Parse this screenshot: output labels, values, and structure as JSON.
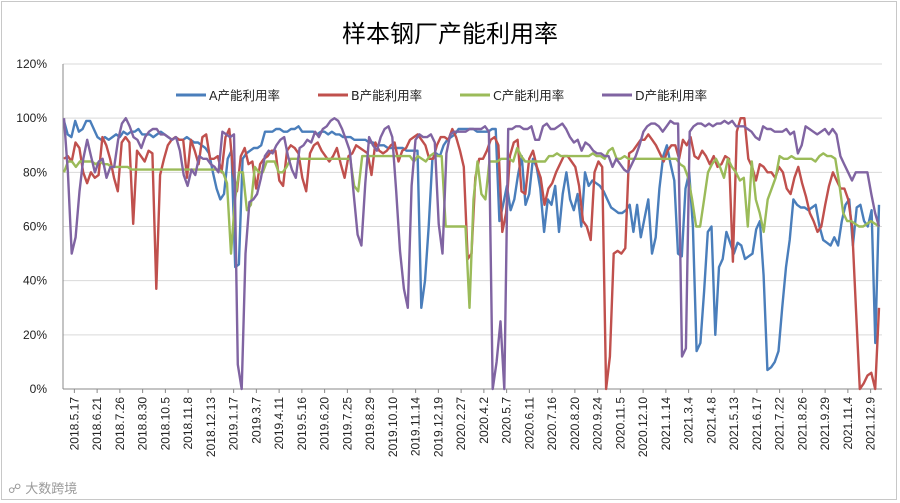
{
  "chart_data": {
    "type": "line",
    "title": "样本钢厂产能利用率",
    "ylim": [
      0,
      1.2
    ],
    "y_ticks": [
      "0%",
      "20%",
      "40%",
      "60%",
      "80%",
      "100%",
      "120%"
    ],
    "x_tick_labels": [
      "2018.5.17",
      "2018.6.21",
      "2018.7.26",
      "2018.8.30",
      "2018.10.5",
      "2018.11.8",
      "2018.12.13",
      "2019.1.17",
      "2019.3.7",
      "2019.4.11",
      "2019.5.16",
      "2019.6.20",
      "2019.7.25",
      "2019.8.29",
      "2019.10.10",
      "2019.11.14",
      "2019.12.19",
      "2020.2.27",
      "2020.4.2",
      "2020.5.7",
      "2020.6.11",
      "2020.7.16",
      "2020.8.20",
      "2020.9.24",
      "2020.11.5",
      "2020.12.10",
      "2021.1.14",
      "2021.3.4",
      "2021.4.8",
      "2021.5.13",
      "2021.6.17",
      "2021.7.22",
      "2021.8.26",
      "2021.9.29",
      "2021.11.4",
      "2021.12.9"
    ],
    "grid": "horizontal",
    "legend_position": "top",
    "series": [
      {
        "name": "A产能利用率",
        "color": "#4a7ebb",
        "values": [
          0.99,
          0.94,
          0.93,
          0.99,
          0.95,
          0.96,
          0.99,
          0.99,
          0.96,
          0.93,
          0.92,
          0.93,
          0.92,
          0.93,
          0.94,
          0.93,
          0.95,
          0.94,
          0.95,
          0.95,
          0.96,
          0.94,
          0.94,
          0.94,
          0.93,
          0.94,
          0.95,
          0.94,
          0.93,
          0.92,
          0.93,
          0.92,
          0.92,
          0.93,
          0.92,
          0.91,
          0.91,
          0.9,
          0.89,
          0.87,
          0.8,
          0.74,
          0.7,
          0.72,
          0.85,
          0.88,
          0.45,
          0.46,
          0.85,
          0.87,
          0.88,
          0.89,
          0.89,
          0.9,
          0.95,
          0.95,
          0.95,
          0.96,
          0.96,
          0.95,
          0.95,
          0.96,
          0.96,
          0.97,
          0.95,
          0.95,
          0.95,
          0.95,
          0.94,
          0.95,
          0.95,
          0.94,
          0.95,
          0.94,
          0.94,
          0.93,
          0.93,
          0.93,
          0.92,
          0.92,
          0.92,
          0.92,
          0.91,
          0.91,
          0.9,
          0.9,
          0.9,
          0.89,
          0.89,
          0.89,
          0.89,
          0.89,
          0.88,
          0.88,
          0.88,
          0.88,
          0.3,
          0.4,
          0.6,
          0.85,
          0.87,
          0.86,
          0.9,
          0.92,
          0.93,
          0.94,
          0.96,
          0.96,
          0.96,
          0.96,
          0.96,
          0.95,
          0.95,
          0.95,
          0.95,
          0.96,
          0.96,
          0.62,
          0.68,
          0.75,
          0.66,
          0.7,
          0.79,
          0.86,
          0.68,
          0.72,
          0.85,
          0.82,
          0.74,
          0.58,
          0.7,
          0.68,
          0.75,
          0.58,
          0.72,
          0.8,
          0.7,
          0.66,
          0.72,
          0.6,
          0.8,
          0.75,
          0.77,
          0.76,
          0.75,
          0.73,
          0.7,
          0.67,
          0.66,
          0.65,
          0.65,
          0.66,
          0.68,
          0.58,
          0.68,
          0.56,
          0.63,
          0.7,
          0.5,
          0.56,
          0.74,
          0.86,
          0.9,
          0.83,
          0.77,
          0.5,
          0.49,
          0.74,
          0.8,
          0.6,
          0.14,
          0.17,
          0.36,
          0.58,
          0.6,
          0.2,
          0.45,
          0.48,
          0.58,
          0.54,
          0.5,
          0.54,
          0.53,
          0.48,
          0.49,
          0.5,
          0.59,
          0.62,
          0.42,
          0.07,
          0.08,
          0.1,
          0.14,
          0.3,
          0.45,
          0.55,
          0.7,
          0.68,
          0.67,
          0.67,
          0.66,
          0.67,
          0.68,
          0.6,
          0.55,
          0.54,
          0.53,
          0.56,
          0.53,
          0.62,
          0.68,
          0.7,
          0.53,
          0.67,
          0.68,
          0.62,
          0.6,
          0.66,
          0.17,
          0.68
        ]
      },
      {
        "name": "B产能利用率",
        "color": "#c0504d",
        "values": [
          0.85,
          0.86,
          0.84,
          0.91,
          0.89,
          0.8,
          0.76,
          0.8,
          0.78,
          0.79,
          0.93,
          0.9,
          0.85,
          0.78,
          0.73,
          0.91,
          0.93,
          0.91,
          0.61,
          0.88,
          0.86,
          0.84,
          0.88,
          0.87,
          0.37,
          0.79,
          0.85,
          0.9,
          0.92,
          0.93,
          0.92,
          0.92,
          0.78,
          0.92,
          0.88,
          0.83,
          0.93,
          0.94,
          0.85,
          0.85,
          0.86,
          0.8,
          0.93,
          0.96,
          0.8,
          0.73,
          0.86,
          0.89,
          0.83,
          0.84,
          0.74,
          0.83,
          0.85,
          0.86,
          0.88,
          0.88,
          0.77,
          0.75,
          0.88,
          0.9,
          0.89,
          0.87,
          0.78,
          0.73,
          0.87,
          0.9,
          0.91,
          0.88,
          0.86,
          0.84,
          0.86,
          0.89,
          0.83,
          0.78,
          0.86,
          0.87,
          0.9,
          0.89,
          0.88,
          0.87,
          0.79,
          0.91,
          0.88,
          0.87,
          0.88,
          0.9,
          0.91,
          0.84,
          0.88,
          0.89,
          0.92,
          0.93,
          0.94,
          0.92,
          0.9,
          0.85,
          0.85,
          0.9,
          0.93,
          0.93,
          0.92,
          0.96,
          0.93,
          0.88,
          0.82,
          0.48,
          0.5,
          0.78,
          0.85,
          0.85,
          0.88,
          0.92,
          0.93,
          0.9,
          0.58,
          0.65,
          0.86,
          0.91,
          0.92,
          0.73,
          0.72,
          0.85,
          0.88,
          0.82,
          0.78,
          0.68,
          0.74,
          0.76,
          0.8,
          0.83,
          0.86,
          0.86,
          0.84,
          0.82,
          0.75,
          0.62,
          0.6,
          0.55,
          0.8,
          0.84,
          0.82,
          0.0,
          0.12,
          0.5,
          0.51,
          0.5,
          0.52,
          0.87,
          0.88,
          0.9,
          0.92,
          0.92,
          0.94,
          0.92,
          0.9,
          0.87,
          0.84,
          0.88,
          0.9,
          0.9,
          0.85,
          0.92,
          0.9,
          0.93,
          0.86,
          0.85,
          0.88,
          0.86,
          0.83,
          0.86,
          0.82,
          0.83,
          0.86,
          0.85,
          0.47,
          0.95,
          1.0,
          1.0,
          0.85,
          0.82,
          0.77,
          0.83,
          0.82,
          0.8,
          0.8,
          0.78,
          0.82,
          0.8,
          0.74,
          0.72,
          0.78,
          0.82,
          0.76,
          0.71,
          0.65,
          0.62,
          0.58,
          0.6,
          0.68,
          0.75,
          0.8,
          0.77,
          0.74,
          0.74,
          0.7,
          0.6,
          0.3,
          0.0,
          0.02,
          0.05,
          0.06,
          0.0,
          0.3
        ]
      },
      {
        "name": "C产能利用率",
        "color": "#9bbb59",
        "values": [
          0.8,
          0.84,
          0.84,
          0.82,
          0.84,
          0.84,
          0.84,
          0.84,
          0.83,
          0.84,
          0.83,
          0.83,
          0.82,
          0.82,
          0.82,
          0.82,
          0.82,
          0.81,
          0.81,
          0.81,
          0.81,
          0.81,
          0.81,
          0.81,
          0.81,
          0.81,
          0.81,
          0.81,
          0.81,
          0.81,
          0.81,
          0.81,
          0.81,
          0.81,
          0.81,
          0.81,
          0.81,
          0.81,
          0.81,
          0.81,
          0.8,
          0.76,
          0.5,
          0.7,
          0.8,
          0.8,
          0.66,
          0.68,
          0.82,
          0.8,
          0.8,
          0.84,
          0.84,
          0.84,
          0.8,
          0.8,
          0.82,
          0.85,
          0.85,
          0.85,
          0.85,
          0.85,
          0.85,
          0.85,
          0.85,
          0.85,
          0.85,
          0.85,
          0.85,
          0.85,
          0.85,
          0.85,
          0.85,
          0.75,
          0.73,
          0.86,
          0.86,
          0.86,
          0.86,
          0.86,
          0.86,
          0.86,
          0.86,
          0.86,
          0.86,
          0.86,
          0.86,
          0.86,
          0.84,
          0.86,
          0.85,
          0.84,
          0.86,
          0.87,
          0.86,
          0.86,
          0.6,
          0.6,
          0.6,
          0.6,
          0.6,
          0.6,
          0.3,
          0.7,
          0.84,
          0.72,
          0.7,
          0.84,
          0.84,
          0.84,
          0.85,
          0.85,
          0.85,
          0.84,
          0.89,
          0.86,
          0.84,
          0.84,
          0.84,
          0.84,
          0.84,
          0.84,
          0.86,
          0.86,
          0.87,
          0.86,
          0.86,
          0.86,
          0.86,
          0.86,
          0.86,
          0.86,
          0.86,
          0.87,
          0.86,
          0.86,
          0.85,
          0.88,
          0.89,
          0.85,
          0.85,
          0.86,
          0.85,
          0.85,
          0.85,
          0.85,
          0.85,
          0.85,
          0.85,
          0.85,
          0.85,
          0.85,
          0.85,
          0.85,
          0.85,
          0.83,
          0.82,
          0.78,
          0.7,
          0.6,
          0.6,
          0.7,
          0.8,
          0.83,
          0.85,
          0.82,
          0.78,
          0.85,
          0.82,
          0.8,
          0.77,
          0.78,
          0.6,
          0.84,
          0.7,
          0.65,
          0.58,
          0.7,
          0.74,
          0.78,
          0.86,
          0.85,
          0.85,
          0.86,
          0.85,
          0.85,
          0.85,
          0.85,
          0.85,
          0.84,
          0.86,
          0.87,
          0.86,
          0.86,
          0.85,
          0.76,
          0.65,
          0.62,
          0.62,
          0.61,
          0.6,
          0.6,
          0.61,
          0.62,
          0.61,
          0.6
        ]
      },
      {
        "name": "D产能利用率",
        "color": "#8064a2",
        "values": [
          1.0,
          0.8,
          0.5,
          0.56,
          0.73,
          0.85,
          0.92,
          0.86,
          0.8,
          0.84,
          0.85,
          0.78,
          0.82,
          0.82,
          0.92,
          0.98,
          1.0,
          0.97,
          0.93,
          0.92,
          0.89,
          0.93,
          0.95,
          0.96,
          0.96,
          0.94,
          0.94,
          0.93,
          0.92,
          0.93,
          0.88,
          0.79,
          0.75,
          0.81,
          0.79,
          0.86,
          0.85,
          0.85,
          0.83,
          0.82,
          0.8,
          0.95,
          0.94,
          0.93,
          0.94,
          0.09,
          0.0,
          0.5,
          0.69,
          0.7,
          0.72,
          0.78,
          0.86,
          0.88,
          0.87,
          0.9,
          0.92,
          0.93,
          0.86,
          0.81,
          0.78,
          0.89,
          0.9,
          0.92,
          0.91,
          0.95,
          0.93,
          0.96,
          0.97,
          0.99,
          1.0,
          0.99,
          0.96,
          0.92,
          0.88,
          0.72,
          0.57,
          0.53,
          0.76,
          0.93,
          0.9,
          0.88,
          0.93,
          0.96,
          0.97,
          0.93,
          0.73,
          0.51,
          0.37,
          0.3,
          0.75,
          0.92,
          0.94,
          0.93,
          0.93,
          0.94,
          0.91,
          0.61,
          0.5,
          0.87,
          0.94,
          0.95,
          0.95,
          0.95,
          0.95,
          0.96,
          0.96,
          0.96,
          0.96,
          0.97,
          0.95,
          0.0,
          0.1,
          0.25,
          0.0,
          0.96,
          0.96,
          0.97,
          0.97,
          0.96,
          0.96,
          0.97,
          0.92,
          0.92,
          0.97,
          0.98,
          0.96,
          0.96,
          0.97,
          0.98,
          0.96,
          0.93,
          0.91,
          0.92,
          0.88,
          0.91,
          0.9,
          0.88,
          0.87,
          0.87,
          0.86,
          0.86,
          0.82,
          0.85,
          0.83,
          0.81,
          0.8,
          0.83,
          0.86,
          0.9,
          0.95,
          0.97,
          0.98,
          0.98,
          0.97,
          0.95,
          0.97,
          0.99,
          0.98,
          0.98,
          0.12,
          0.15,
          0.95,
          0.97,
          0.98,
          0.98,
          0.97,
          0.98,
          0.97,
          0.98,
          0.98,
          0.99,
          0.98,
          0.99,
          0.97,
          0.97,
          0.97,
          0.96,
          0.95,
          0.93,
          0.92,
          0.97,
          0.96,
          0.96,
          0.95,
          0.95,
          0.95,
          0.96,
          0.94,
          0.95,
          0.87,
          0.9,
          0.97,
          0.96,
          0.95,
          0.94,
          0.95,
          0.96,
          0.94,
          0.96,
          0.94,
          0.86,
          0.83,
          0.8,
          0.77,
          0.8,
          0.8,
          0.8,
          0.8,
          0.72,
          0.65,
          0.6
        ]
      }
    ]
  }
}
